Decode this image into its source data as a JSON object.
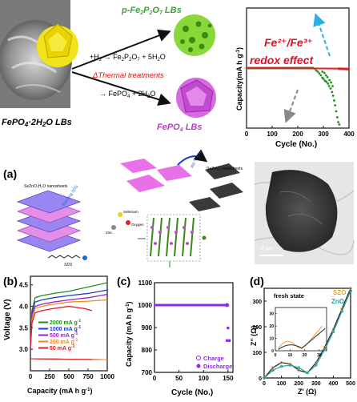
{
  "top": {
    "left_label": "FePO",
    "left_label_sub": "4",
    "left_label_rest": "·2H",
    "left_label_sub2": "2",
    "left_label_end": "O LBs",
    "product_top": "p-Fe",
    "product_top_s1": "2",
    "product_top_m": "P",
    "product_top_s2": "2",
    "product_top_m2": "O",
    "product_top_s3": "7",
    "product_top_end": " LBs",
    "product_bottom": "FePO",
    "product_bottom_sub": "4",
    "product_bottom_end": " LBs",
    "reaction_top_pre": "+H",
    "reaction_top_s1": "2",
    "reaction_top_arrow": " → Fe",
    "reaction_top_s2": "2",
    "reaction_top_m": "P",
    "reaction_top_s3": "2",
    "reaction_top_m2": "O",
    "reaction_top_s4": "7",
    "reaction_top_end": " + 5H",
    "reaction_top_s5": "2",
    "reaction_top_o": "O",
    "thermal": "ΔThermal treatments",
    "reaction_bottom_pre": "→ FePO",
    "reaction_bottom_s1": "4",
    "reaction_bottom_end": " + 2H",
    "reaction_bottom_s2": "2",
    "reaction_bottom_o": "O"
  },
  "topchart": {
    "ylabel": "Capacity(mA h g",
    "ylabel_sup": "-1",
    "ylabel_end": ")",
    "xlabel": "Cycle (No.)",
    "xticks": [
      "0",
      "100",
      "200",
      "300",
      "400"
    ],
    "annot_line1": "Fe²⁺/Fe³⁺",
    "annot_line2": "redox  effect",
    "colors": {
      "green": "#1a8f1a",
      "red": "#e0202a",
      "annot": "#e0102a",
      "blue": "#2ab0e8",
      "gray": "#888888"
    }
  },
  "panel_a": {
    "label": "(a)",
    "sezao_h2o": "SeZnO₂H₂O nanosheets",
    "sezao": "SeZnO₂ nanosheets",
    "sds": "SDS",
    "selenium": "Selenium",
    "oxygen": "Oxygen",
    "zinc": "Zinc",
    "scale": "2 μm",
    "arrow_label": "300 °C in air",
    "stack_label": "Stacking SDS"
  },
  "panel_b": {
    "label": "(b)",
    "ylabel": "Voltage (V)",
    "xlabel": "Capacity (mA h g",
    "xlabel_sup": "-1",
    "xlabel_end": ")",
    "xticks": [
      "0",
      "250",
      "500",
      "750",
      "1000"
    ],
    "yticks": [
      "3.0",
      "3.5",
      "4.0",
      "4.5"
    ],
    "legend": [
      {
        "label": "2000 mA g",
        "sup": "-1",
        "color": "#1f8f1f"
      },
      {
        "label": "1000 mA g",
        "sup": "-1",
        "color": "#1f3fcf"
      },
      {
        "label": "500 mA g",
        "sup": "-1",
        "color": "#9a20c0"
      },
      {
        "label": "200 mA g",
        "sup": "-1",
        "color": "#f08a20"
      },
      {
        "label": "50 mA g",
        "sup": "-1",
        "color": "#e02020"
      }
    ]
  },
  "panel_c": {
    "label": "(c)",
    "ylabel": "Capacity (mA h g",
    "ylabel_sup": "-1",
    "ylabel_end": ")",
    "xlabel": "Cycle (No.)",
    "xticks": [
      "0",
      "50",
      "100",
      "150"
    ],
    "yticks": [
      "700",
      "800",
      "900",
      "1000",
      "1100"
    ],
    "legend": [
      "Charge",
      "Discharge"
    ],
    "color": "#8a2be2"
  },
  "panel_d": {
    "label": "(d)",
    "title": "fresh state",
    "legend": [
      "SZO",
      "ZnO"
    ],
    "legend_colors": [
      "#f0a030",
      "#2aa0a0"
    ],
    "ylabel": "Z'' (Ω)",
    "xlabel": "Z' (Ω)",
    "xticks": [
      "0",
      "100",
      "200",
      "300",
      "400",
      "500"
    ],
    "yticks": [
      "0",
      "100",
      "200",
      "300"
    ],
    "inset_xticks": [
      "0",
      "10",
      "20",
      "30"
    ],
    "inset_yticks": [
      "0",
      "10",
      "20",
      "30"
    ]
  },
  "chart_data": [
    {
      "type": "scatter",
      "title": "",
      "xlabel": "Cycle (No.)",
      "ylabel": "Capacity(mA h g-1)",
      "xlim": [
        0,
        400
      ],
      "series": [
        {
          "color": "#1a8f1a",
          "x": [
            0,
            100,
            200,
            250,
            275,
            300,
            315,
            330,
            345,
            360
          ],
          "y": [
            500,
            500,
            500,
            500,
            470,
            420,
            380,
            320,
            200,
            30
          ]
        },
        {
          "color": "#e0202a",
          "x": [
            0,
            100,
            200,
            300,
            350,
            380,
            400
          ],
          "y": [
            500,
            500,
            500,
            500,
            495,
            490,
            490
          ]
        }
      ]
    },
    {
      "type": "line",
      "xlabel": "Capacity (mA h g-1)",
      "ylabel": "Voltage (V)",
      "xlim": [
        0,
        1000
      ],
      "ylim": [
        2.5,
        4.7
      ],
      "series": [
        {
          "name": "2000 mA g-1",
          "color": "#1f8f1f",
          "x": [
            0,
            20,
            60,
            150,
            300,
            500,
            750,
            1000
          ],
          "y": [
            3.0,
            3.9,
            4.2,
            4.25,
            4.3,
            4.35,
            4.45,
            4.55
          ]
        },
        {
          "name": "1000 mA g-1",
          "color": "#1f3fcf",
          "x": [
            0,
            20,
            60,
            150,
            300,
            500,
            750,
            1000
          ],
          "y": [
            3.0,
            3.85,
            4.1,
            4.15,
            4.2,
            4.25,
            4.3,
            4.38
          ]
        },
        {
          "name": "500 mA g-1",
          "color": "#9a20c0",
          "x": [
            0,
            20,
            60,
            150,
            300,
            500,
            750,
            1000
          ],
          "y": [
            3.0,
            3.8,
            4.0,
            4.05,
            4.1,
            4.15,
            4.2,
            4.28
          ]
        },
        {
          "name": "200 mA g-1",
          "color": "#f08a20",
          "x": [
            0,
            20,
            60,
            150,
            300,
            500,
            750,
            1000
          ],
          "y": [
            3.0,
            3.7,
            3.95,
            4.0,
            4.05,
            4.1,
            4.12,
            4.15
          ]
        },
        {
          "name": "50 mA g-1",
          "color": "#e02020",
          "x": [
            0,
            20,
            60,
            150,
            300,
            500,
            700,
            800
          ],
          "y": [
            3.0,
            3.6,
            3.85,
            3.9,
            3.95,
            4.0,
            3.95,
            3.9
          ]
        }
      ]
    },
    {
      "type": "scatter",
      "xlabel": "Cycle (No.)",
      "ylabel": "Capacity (mA h g-1)",
      "xlim": [
        0,
        160
      ],
      "ylim": [
        700,
        1100
      ],
      "series": [
        {
          "name": "Charge",
          "x": [
            0,
            25,
            50,
            75,
            100,
            125,
            150
          ],
          "y": [
            1000,
            1000,
            1000,
            1000,
            1000,
            1000,
            1000
          ]
        },
        {
          "name": "Discharge",
          "x": [
            0,
            25,
            50,
            75,
            100,
            125,
            147,
            150,
            150
          ],
          "y": [
            1000,
            1000,
            1000,
            1000,
            1000,
            1000,
            1000,
            900,
            840
          ]
        }
      ]
    },
    {
      "type": "line",
      "xlabel": "Z' (Ω)",
      "ylabel": "Z'' (Ω)",
      "xlim": [
        0,
        500
      ],
      "ylim": [
        0,
        350
      ],
      "series": [
        {
          "name": "SZO",
          "x": [
            0,
            50,
            100,
            150,
            200,
            250,
            300,
            350,
            400,
            450,
            500
          ],
          "y": [
            0,
            40,
            60,
            55,
            30,
            20,
            60,
            120,
            190,
            270,
            350
          ]
        },
        {
          "name": "ZnO",
          "x": [
            0,
            50,
            100,
            150,
            200,
            250,
            300,
            350,
            400,
            450,
            500
          ],
          "y": [
            0,
            30,
            45,
            50,
            40,
            20,
            50,
            110,
            180,
            260,
            340
          ]
        }
      ]
    }
  ]
}
